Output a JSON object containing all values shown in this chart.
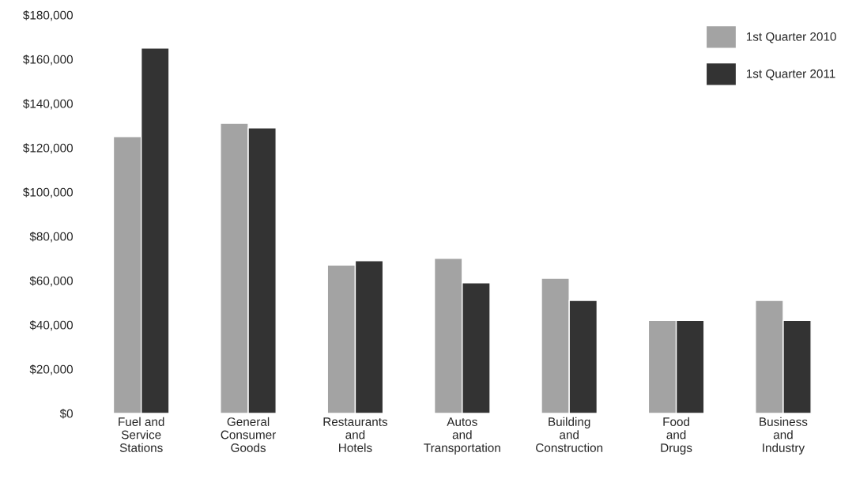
{
  "chart_data": {
    "type": "bar",
    "categories": [
      "Fuel and\nService\nStations",
      "General\nConsumer\nGoods",
      "Restaurants\nand\nHotels",
      "Autos\nand\nTransportation",
      "Building\nand\nConstruction",
      "Food\nand\nDrugs",
      "Business\nand\nIndustry"
    ],
    "series": [
      {
        "name": "1st Quarter 2010",
        "color": "#a3a3a3",
        "values": [
          125000,
          131000,
          67000,
          70000,
          61000,
          42000,
          51000
        ]
      },
      {
        "name": "1st Quarter 2011",
        "color": "#333333",
        "values": [
          165000,
          129000,
          69000,
          59000,
          51000,
          42000,
          42000
        ]
      }
    ],
    "ylim": [
      0,
      180000
    ],
    "yticks": [
      {
        "value": 0,
        "label": "$0"
      },
      {
        "value": 20000,
        "label": "$20,000"
      },
      {
        "value": 40000,
        "label": "$40,000"
      },
      {
        "value": 60000,
        "label": "$60,000"
      },
      {
        "value": 80000,
        "label": "$80,000"
      },
      {
        "value": 100000,
        "label": "$100,000"
      },
      {
        "value": 120000,
        "label": "$120,000"
      },
      {
        "value": 140000,
        "label": "$140,000"
      },
      {
        "value": 160000,
        "label": "$160,000"
      },
      {
        "value": 180000,
        "label": "$180,000"
      }
    ],
    "grid": false,
    "legend": "top right"
  }
}
